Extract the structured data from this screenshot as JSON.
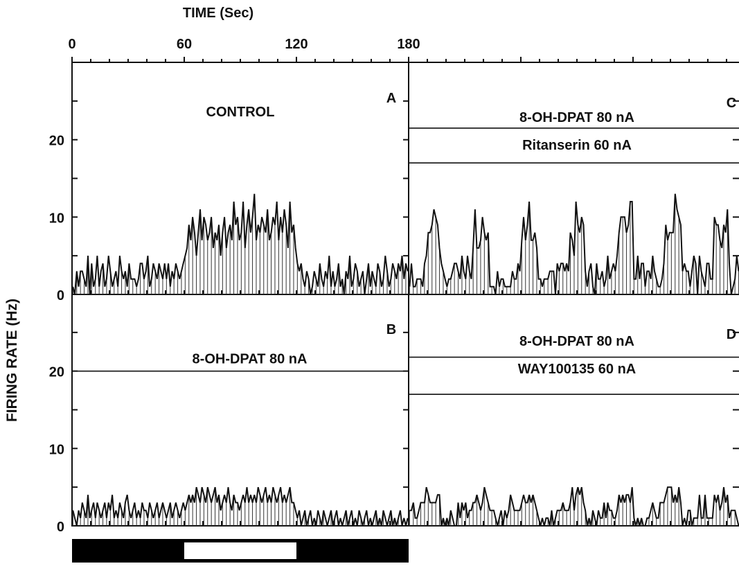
{
  "chart_data": {
    "type": "bar",
    "xlabel": "TIME (Sec)",
    "ylabel": "FIRING RATE (Hz)",
    "x_ticks": [
      "0",
      "60",
      "120",
      "180"
    ],
    "y_ticks": [
      "0",
      "10",
      "20"
    ],
    "xlim": [
      0,
      180
    ],
    "ylim": [
      0,
      30
    ],
    "bin_width_sec": 1,
    "stimulus_bar": {
      "on_start": 60,
      "on_end": 120
    },
    "panels": [
      {
        "letter": "A",
        "labels": [
          {
            "text": "CONTROL",
            "x": 90,
            "y": 23
          }
        ],
        "lines": [],
        "rates": [
          1,
          0,
          3,
          1,
          3,
          3,
          2,
          1,
          5,
          0,
          4,
          1,
          2,
          5,
          1,
          3,
          4,
          1,
          2,
          5,
          3,
          1,
          2,
          3,
          1,
          5,
          3,
          2,
          3,
          1,
          4,
          2,
          2,
          2,
          1,
          2,
          4,
          4,
          2,
          3,
          5,
          1,
          2,
          4,
          3,
          2,
          4,
          3,
          2,
          4,
          2,
          4,
          1,
          3,
          2,
          4,
          3,
          2,
          3,
          4,
          5,
          6,
          9,
          7,
          10,
          8,
          5,
          8,
          11,
          7,
          10,
          9,
          7,
          8,
          10,
          6,
          8,
          7,
          9,
          5,
          8,
          10,
          6,
          8,
          9,
          7,
          12,
          9,
          10,
          7,
          8,
          12,
          6,
          9,
          11,
          8,
          10,
          13,
          7,
          9,
          8,
          10,
          9,
          8,
          11,
          7,
          8,
          10,
          9,
          12,
          7,
          10,
          8,
          11,
          9,
          6,
          12,
          8,
          9,
          6,
          4,
          3,
          4,
          2,
          1,
          3,
          2,
          0,
          1,
          3,
          2,
          1,
          4,
          2,
          1,
          3,
          2,
          5,
          1,
          3,
          1,
          2,
          4,
          1,
          2,
          0,
          3,
          2,
          5,
          1,
          2,
          4,
          3,
          1,
          2,
          3,
          0,
          2,
          4,
          1,
          3,
          2,
          1,
          4,
          3,
          1,
          2,
          5,
          3,
          1,
          2,
          4,
          3,
          2,
          4,
          3,
          5,
          2,
          4,
          3
        ]
      },
      {
        "letter": "B",
        "labels": [
          {
            "text": "8-OH-DPAT  80 nA",
            "x": 95,
            "y": 21
          }
        ],
        "lines": [
          20
        ],
        "rates": [
          2,
          1,
          0,
          2,
          1,
          3,
          2,
          1,
          4,
          1,
          2,
          3,
          1,
          3,
          2,
          1,
          2,
          3,
          1,
          3,
          2,
          4,
          1,
          2,
          1,
          3,
          2,
          1,
          3,
          4,
          2,
          1,
          2,
          3,
          1,
          2,
          1,
          3,
          2,
          2,
          1,
          3,
          2,
          1,
          2,
          3,
          1,
          2,
          3,
          2,
          1,
          2,
          3,
          1,
          2,
          3,
          2,
          1,
          2,
          3,
          2,
          3,
          4,
          3,
          4,
          3,
          5,
          4,
          3,
          5,
          4,
          3,
          5,
          4,
          3,
          4,
          5,
          3,
          4,
          2,
          3,
          4,
          3,
          5,
          3,
          2,
          4,
          3,
          3,
          2,
          3,
          4,
          3,
          5,
          3,
          4,
          3,
          4,
          3,
          5,
          4,
          3,
          4,
          5,
          3,
          4,
          3,
          5,
          4,
          3,
          4,
          5,
          3,
          4,
          3,
          4,
          5,
          3,
          3,
          2,
          1,
          2,
          0,
          1,
          2,
          0,
          1,
          2,
          0,
          1,
          0,
          2,
          1,
          0,
          2,
          1,
          0,
          1,
          2,
          0,
          1,
          2,
          0,
          1,
          0,
          1,
          2,
          0,
          1,
          2,
          0,
          1,
          0,
          2,
          1,
          0,
          1,
          2,
          0,
          1,
          0,
          1,
          2,
          0,
          1,
          0,
          2,
          1,
          0,
          1,
          2,
          0,
          1,
          0,
          1,
          2,
          0,
          1,
          0,
          1
        ]
      },
      {
        "letter": "C",
        "labels": [
          {
            "text": "8-OH-DPAT 80 nA",
            "x": 90,
            "y": 22.3
          },
          {
            "text": "Ritanserin  60 nA",
            "x": 90,
            "y": 18.7
          }
        ],
        "lines": [
          21.5,
          17
        ]
      },
      {
        "letter": "D",
        "labels": [
          {
            "text": "8-OH-DPAT  80 nA",
            "x": 90,
            "y": 23.3
          },
          {
            "text": "WAY100135  60 nA",
            "x": 90,
            "y": 19.7
          }
        ],
        "lines": [
          21.8,
          17
        ]
      }
    ]
  }
}
